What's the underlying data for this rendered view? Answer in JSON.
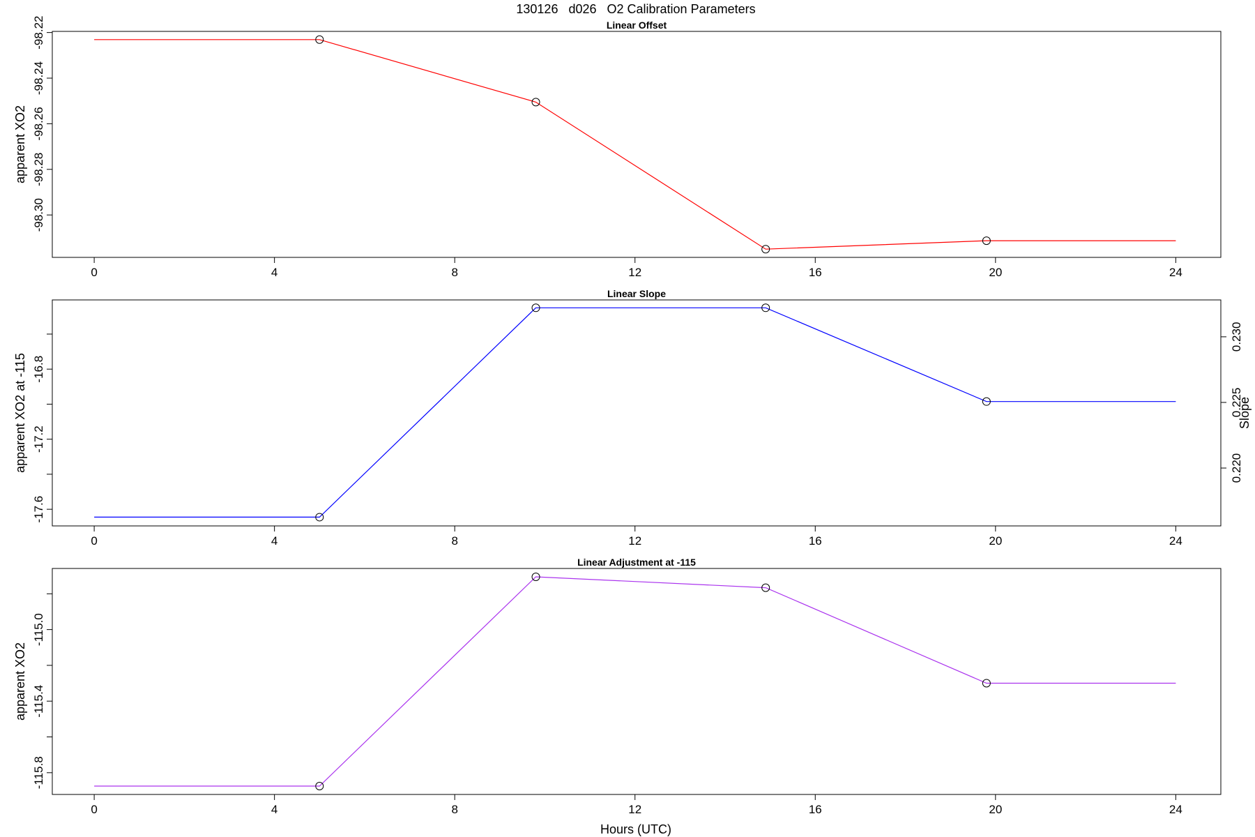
{
  "figure": {
    "title": "130126   d026   O2 Calibration Parameters",
    "xlabel": "Hours (UTC)"
  },
  "chart_data": [
    {
      "type": "line",
      "title": "Linear Offset",
      "xlabel": "",
      "ylabel": "apparent XO2",
      "xlim": [
        -0.93,
        25
      ],
      "xticks": [
        0,
        4,
        8,
        12,
        16,
        20,
        24
      ],
      "ylim": [
        -98.3186,
        -98.2195
      ],
      "yticks": [
        -98.3,
        -98.28,
        -98.26,
        -98.24,
        -98.22
      ],
      "ytick_labels": [
        "-98.30",
        "-98.28",
        "-98.26",
        "-98.24",
        "-98.22"
      ],
      "color": "#ff0000",
      "series": [
        {
          "x": [
            0,
            5,
            9.8,
            14.9,
            19.8,
            24
          ],
          "y": [
            -98.2231,
            -98.2231,
            -98.2505,
            -98.315,
            -98.3113,
            -98.3113
          ]
        }
      ],
      "markers": {
        "x": [
          5,
          9.8,
          14.9,
          19.8
        ],
        "y": [
          -98.2231,
          -98.2505,
          -98.315,
          -98.3113
        ]
      }
    },
    {
      "type": "line",
      "title": "Linear Slope",
      "xlabel": "",
      "ylabel": "apparent XO2 at -115",
      "y2label": "Slope",
      "xlim": [
        -0.93,
        25
      ],
      "xticks": [
        0,
        4,
        8,
        12,
        16,
        20,
        24
      ],
      "ylim": [
        -17.695,
        -16.405
      ],
      "yticks": [
        -17.6,
        -17.4,
        -17.2,
        -17.0,
        -16.8,
        -16.6
      ],
      "ytick_labels": [
        "-17.6",
        "",
        "-17.2",
        "",
        "-16.8",
        ""
      ],
      "y2lim": [
        0.21559,
        0.23281
      ],
      "y2ticks": [
        0.22,
        0.225,
        0.23
      ],
      "y2tick_labels": [
        "0.220",
        "0.225",
        "0.230"
      ],
      "color": "#0000ff",
      "series": [
        {
          "x": [
            0,
            5,
            9.8,
            14.9,
            19.8,
            24
          ],
          "y": [
            -17.645,
            -17.645,
            -16.45,
            -16.45,
            -16.985,
            -16.985
          ]
        }
      ],
      "markers": {
        "x": [
          5,
          9.8,
          14.9,
          19.8
        ],
        "y": [
          -17.645,
          -16.45,
          -16.45,
          -16.985
        ]
      }
    },
    {
      "type": "line",
      "title": "Linear Adjustment at -115",
      "xlabel": "Hours (UTC)",
      "ylabel": "apparent XO2",
      "xlim": [
        -0.93,
        25
      ],
      "xticks": [
        0,
        4,
        8,
        12,
        16,
        20,
        24
      ],
      "ylim": [
        -115.9216,
        -114.6584
      ],
      "yticks": [
        -115.8,
        -115.6,
        -115.4,
        -115.2,
        -115.0,
        -114.8
      ],
      "ytick_labels": [
        "-115.8",
        "",
        "-115.4",
        "",
        "-115.0",
        ""
      ],
      "color": "#aa33ee",
      "series": [
        {
          "x": [
            0,
            5,
            9.8,
            14.9,
            19.8,
            24
          ],
          "y": [
            -115.8749,
            -115.8749,
            -114.7051,
            -114.766,
            -115.2996,
            -115.2996
          ]
        }
      ],
      "markers": {
        "x": [
          5,
          9.8,
          14.9,
          19.8
        ],
        "y": [
          -115.8749,
          -114.7051,
          -114.766,
          -115.2996
        ]
      }
    }
  ]
}
